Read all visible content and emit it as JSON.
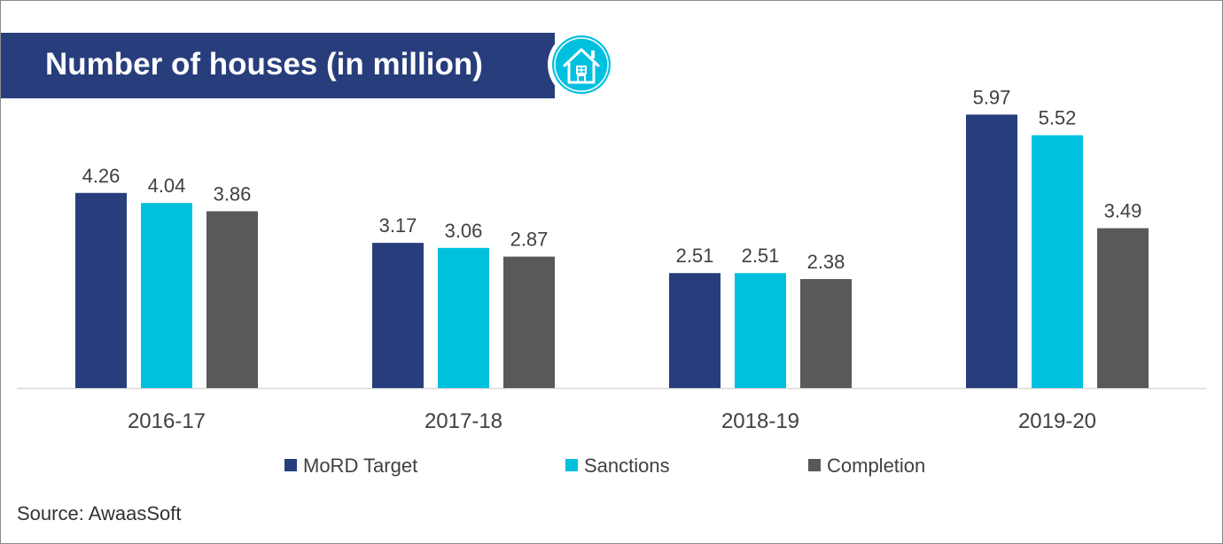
{
  "header": {
    "title": "Number of houses (in million)",
    "icon": "house-icon"
  },
  "chart_data": {
    "type": "bar",
    "categories": [
      "2016-17",
      "2017-18",
      "2018-19",
      "2019-20"
    ],
    "series": [
      {
        "name": "MoRD Target",
        "values": [
          4.26,
          3.17,
          2.51,
          5.97
        ],
        "color": "#283e7c"
      },
      {
        "name": "Sanctions",
        "values": [
          4.04,
          3.06,
          2.51,
          5.52
        ],
        "color": "#00c0e0"
      },
      {
        "name": "Completion",
        "values": [
          3.86,
          2.87,
          2.38,
          3.49
        ],
        "color": "#595959"
      }
    ],
    "title": "Number of houses (in million)",
    "xlabel": "",
    "ylabel": "",
    "ylim": [
      0,
      6
    ],
    "grid": false,
    "legend_position": "bottom"
  },
  "footer": {
    "source": "Source: AwaasSoft"
  },
  "colors": {
    "banner": "#283e7c",
    "icon_circle": "#00c0e0",
    "axis": "#d9d9d9",
    "text": "#404040"
  }
}
